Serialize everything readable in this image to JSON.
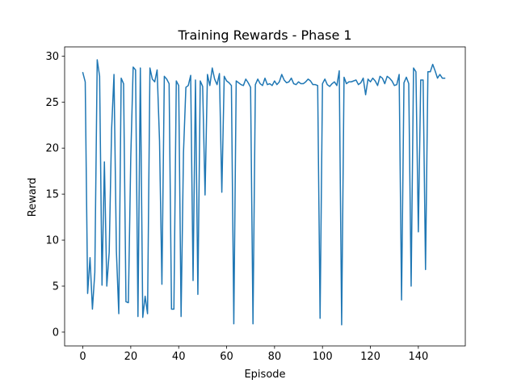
{
  "chart_data": {
    "type": "line",
    "title": "Training Rewards - Phase 1",
    "xlabel": "Episode",
    "ylabel": "Reward",
    "xlim": [
      -7.6,
      159.6
    ],
    "ylim": [
      -1.5,
      31.0
    ],
    "xticks": [
      0,
      20,
      40,
      60,
      80,
      100,
      120,
      140
    ],
    "yticks": [
      0,
      5,
      10,
      15,
      20,
      25,
      30
    ],
    "grid": false,
    "legend": "none",
    "series": [
      {
        "color": "#1f77b4",
        "x": [
          0,
          1,
          2,
          3,
          4,
          5,
          6,
          7,
          8,
          9,
          10,
          11,
          12,
          13,
          14,
          15,
          16,
          17,
          18,
          19,
          20,
          21,
          22,
          23,
          24,
          25,
          26,
          27,
          28,
          29,
          30,
          31,
          32,
          33,
          34,
          35,
          36,
          37,
          38,
          39,
          40,
          41,
          42,
          43,
          44,
          45,
          46,
          47,
          48,
          49,
          50,
          51,
          52,
          53,
          54,
          55,
          56,
          57,
          58,
          59,
          60,
          61,
          62,
          63,
          64,
          65,
          66,
          67,
          68,
          69,
          70,
          71,
          72,
          73,
          74,
          75,
          76,
          77,
          78,
          79,
          80,
          81,
          82,
          83,
          84,
          85,
          86,
          87,
          88,
          89,
          90,
          91,
          92,
          93,
          94,
          95,
          96,
          97,
          98,
          99,
          100,
          101,
          102,
          103,
          104,
          105,
          106,
          107,
          108,
          109,
          110,
          111,
          112,
          113,
          114,
          115,
          116,
          117,
          118,
          119,
          120,
          121,
          122,
          123,
          124,
          125,
          126,
          127,
          128,
          129,
          130,
          131,
          132,
          133,
          134,
          135,
          136,
          137,
          138,
          139,
          140,
          141,
          142,
          143,
          144,
          145,
          146,
          147,
          148,
          149,
          150,
          151
        ],
        "y": [
          28.2,
          27.2,
          4.2,
          8.1,
          2.5,
          6.5,
          29.6,
          27.8,
          5.1,
          18.5,
          5.0,
          8.7,
          22.0,
          28.0,
          8.8,
          2.0,
          27.6,
          27.0,
          3.3,
          3.2,
          19.0,
          28.8,
          28.5,
          1.7,
          28.7,
          1.6,
          3.9,
          2.0,
          28.7,
          27.5,
          27.2,
          28.5,
          20.8,
          5.2,
          27.8,
          27.5,
          27.0,
          2.5,
          2.5,
          27.3,
          26.8,
          1.7,
          19.5,
          26.6,
          26.8,
          27.9,
          5.6,
          27.4,
          4.1,
          27.3,
          26.7,
          14.9,
          28.0,
          26.8,
          28.7,
          27.5,
          26.9,
          28.1,
          15.2,
          27.8,
          27.3,
          27.1,
          26.8,
          0.9,
          27.3,
          27.1,
          26.9,
          26.8,
          27.5,
          27.1,
          26.6,
          0.9,
          26.9,
          27.5,
          27.0,
          26.8,
          27.6,
          26.9,
          27.0,
          26.8,
          27.3,
          26.9,
          27.2,
          28.0,
          27.4,
          27.1,
          27.2,
          27.6,
          27.0,
          26.9,
          27.2,
          27.0,
          27.0,
          27.2,
          27.5,
          27.3,
          26.9,
          26.9,
          26.8,
          1.5,
          27.0,
          27.5,
          26.9,
          26.7,
          27.0,
          27.2,
          26.8,
          28.4,
          0.8,
          27.7,
          27.0,
          27.2,
          27.2,
          27.3,
          27.4,
          26.9,
          27.1,
          27.6,
          25.8,
          27.5,
          27.2,
          27.6,
          27.3,
          26.8,
          27.8,
          27.6,
          27.0,
          27.8,
          27.6,
          27.3,
          26.8,
          26.9,
          28.0,
          3.5,
          27.1,
          27.7,
          27.0,
          5.0,
          28.7,
          28.3,
          10.9,
          27.4,
          27.4,
          6.8,
          28.3,
          28.3,
          29.1,
          28.4,
          27.6,
          28.0,
          27.6,
          27.6
        ]
      }
    ]
  }
}
